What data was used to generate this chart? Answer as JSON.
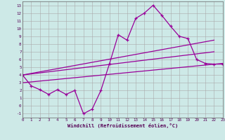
{
  "xlabel": "Windchill (Refroidissement éolien,°C)",
  "bg_color": "#cde9e7",
  "line_color": "#990099",
  "xlim": [
    0,
    23
  ],
  "ylim": [
    -1.5,
    13.5
  ],
  "xticks": [
    0,
    1,
    2,
    3,
    4,
    5,
    6,
    7,
    8,
    9,
    10,
    11,
    12,
    13,
    14,
    15,
    16,
    17,
    18,
    19,
    20,
    21,
    22,
    23
  ],
  "yticks": [
    -1,
    0,
    1,
    2,
    3,
    4,
    5,
    6,
    7,
    8,
    9,
    10,
    11,
    12,
    13
  ],
  "zigzag_x": [
    0,
    1,
    2,
    3,
    4,
    5,
    6,
    7,
    8,
    9,
    10,
    11,
    12,
    13,
    14,
    15,
    16,
    17,
    18,
    19,
    20,
    21,
    22,
    23
  ],
  "zigzag_y": [
    4.0,
    2.6,
    2.1,
    1.5,
    2.1,
    1.5,
    2.0,
    -1.0,
    -0.4,
    2.0,
    5.5,
    9.2,
    8.5,
    11.3,
    12.0,
    13.0,
    11.7,
    10.3,
    9.0,
    8.7,
    6.0,
    5.5,
    5.4,
    5.4
  ],
  "line1_x": [
    0,
    22
  ],
  "line1_y": [
    4.0,
    8.5
  ],
  "line2_x": [
    0,
    22
  ],
  "line2_y": [
    4.0,
    7.0
  ],
  "line3_x": [
    0,
    23
  ],
  "line3_y": [
    3.0,
    5.5
  ]
}
